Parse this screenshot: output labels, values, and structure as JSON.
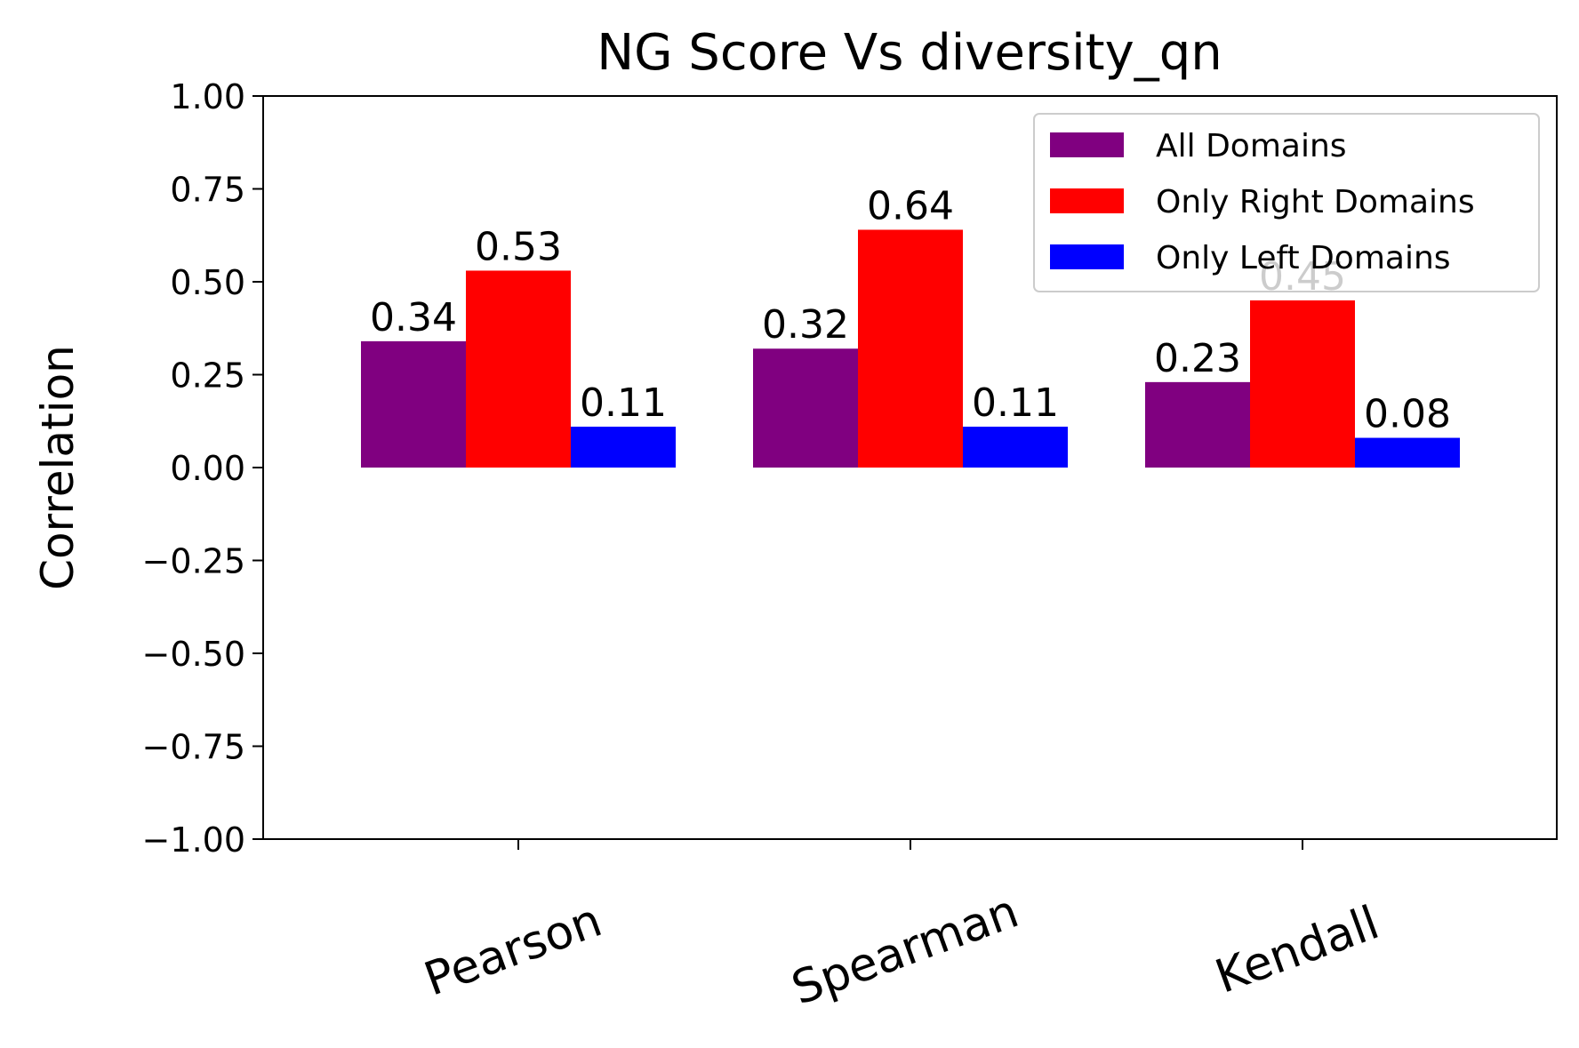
{
  "chart_data": {
    "type": "bar",
    "title": "NG Score Vs diversity_qn",
    "xlabel": "",
    "ylabel": "Correlation",
    "categories": [
      "Pearson",
      "Spearman",
      "Kendall"
    ],
    "series": [
      {
        "name": "All Domains",
        "color": "#800080",
        "values": [
          0.34,
          0.32,
          0.23
        ],
        "labels": [
          "0.34",
          "0.32",
          "0.23"
        ]
      },
      {
        "name": "Only Right Domains",
        "color": "#ff0000",
        "values": [
          0.53,
          0.64,
          0.45
        ],
        "labels": [
          "0.53",
          "0.64",
          "0.45"
        ]
      },
      {
        "name": "Only Left Domains",
        "color": "#0000ff",
        "values": [
          0.11,
          0.11,
          0.08
        ],
        "labels": [
          "0.11",
          "0.11",
          "0.08"
        ]
      }
    ],
    "ylim": [
      -1.0,
      1.0
    ],
    "yticks": [
      -1.0,
      -0.75,
      -0.5,
      -0.25,
      0.0,
      0.25,
      0.5,
      0.75,
      1.0
    ],
    "ytick_labels": [
      "−1.00",
      "−0.75",
      "−0.50",
      "−0.25",
      "0.00",
      "0.25",
      "0.50",
      "0.75",
      "1.00"
    ],
    "xtick_rotation_deg": -20,
    "grid": false,
    "legend_position": "top-right"
  }
}
